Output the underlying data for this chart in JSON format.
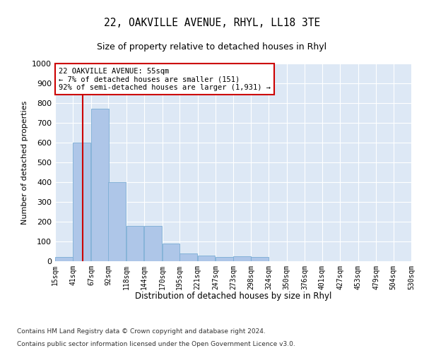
{
  "title": "22, OAKVILLE AVENUE, RHYL, LL18 3TE",
  "subtitle": "Size of property relative to detached houses in Rhyl",
  "xlabel": "Distribution of detached houses by size in Rhyl",
  "ylabel": "Number of detached properties",
  "footer1": "Contains HM Land Registry data © Crown copyright and database right 2024.",
  "footer2": "Contains public sector information licensed under the Open Government Licence v3.0.",
  "annotation_line1": "22 OAKVILLE AVENUE: 55sqm",
  "annotation_line2": "← 7% of detached houses are smaller (151)",
  "annotation_line3": "92% of semi-detached houses are larger (1,931) →",
  "bar_color": "#aec6e8",
  "bar_edge_color": "#7aadd4",
  "line_color": "#cc0000",
  "annotation_box_color": "#cc0000",
  "plot_bg_color": "#dde8f5",
  "bins": [
    15,
    41,
    67,
    92,
    118,
    144,
    170,
    195,
    221,
    247,
    273,
    298,
    324,
    350,
    376,
    401,
    427,
    453,
    479,
    504,
    530
  ],
  "values": [
    20,
    600,
    770,
    400,
    180,
    180,
    90,
    40,
    30,
    20,
    25,
    20,
    0,
    0,
    0,
    0,
    0,
    0,
    0,
    0
  ],
  "property_size": 55,
  "ylim": [
    0,
    1000
  ],
  "yticks": [
    0,
    100,
    200,
    300,
    400,
    500,
    600,
    700,
    800,
    900,
    1000
  ]
}
